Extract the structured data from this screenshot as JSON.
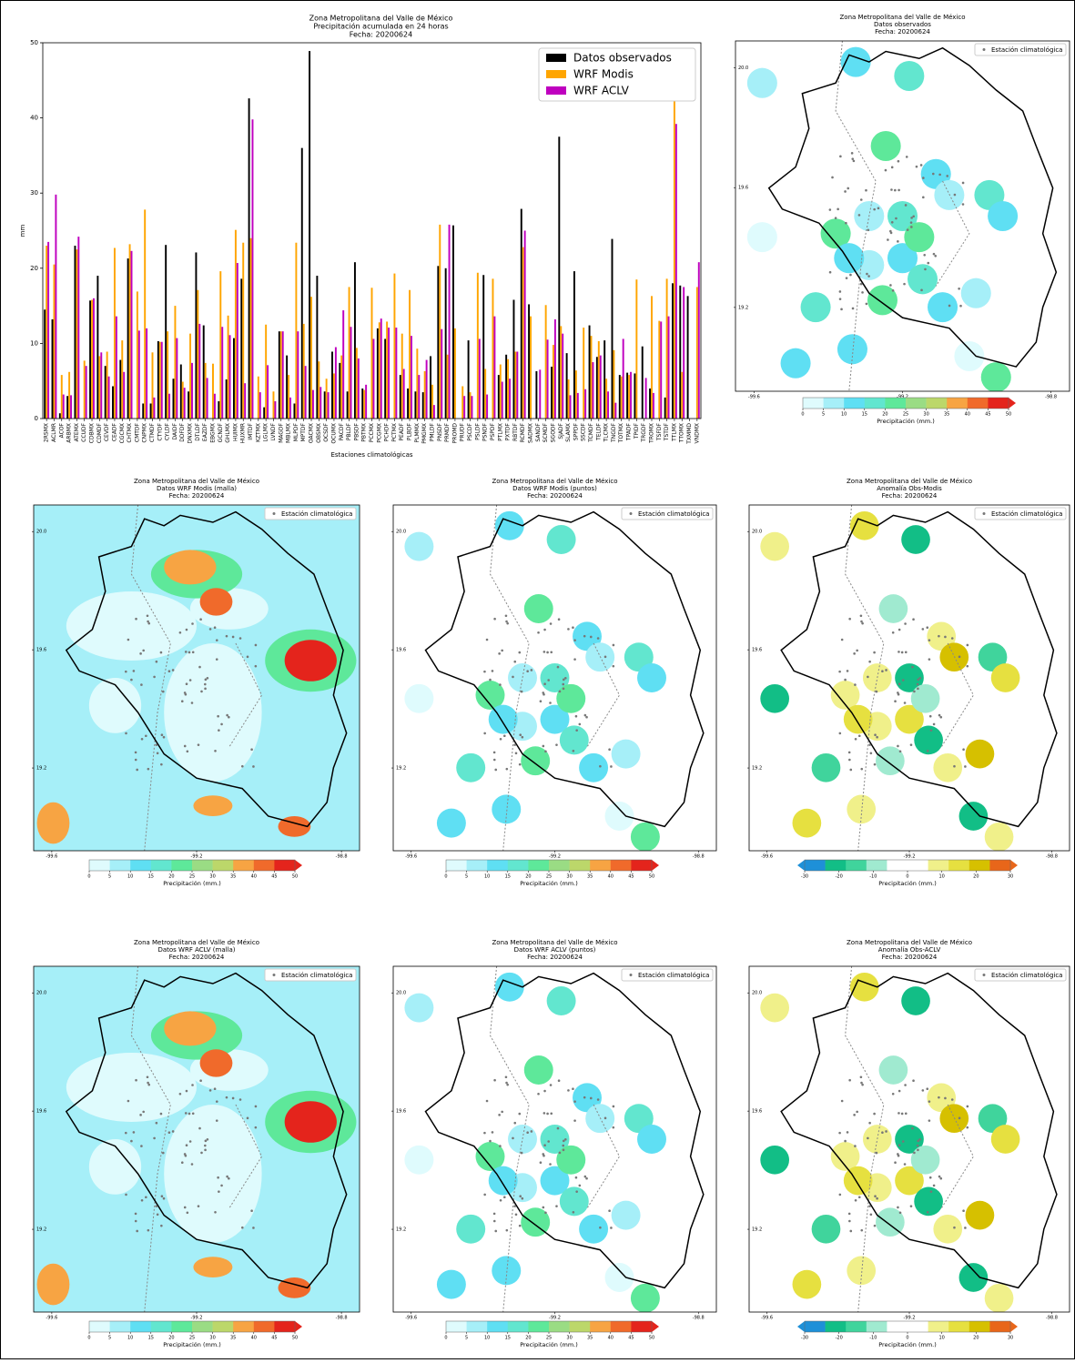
{
  "chart_data": [
    {
      "type": "bar",
      "title": [
        "Zona Metropolitana del Valle de México",
        "Precipitación acumulada en 24 horas",
        "Fecha: 20200624"
      ],
      "x_label": "Estaciones climatológicas",
      "y_label": "mm",
      "categories": [
        "2RSMX",
        "ACLMR",
        "ACOF",
        "ARBMX",
        "ATEMX",
        "CCUDF",
        "CDBMX",
        "CDMDF",
        "CEVDF",
        "CEADF",
        "CGCMX",
        "CHTMX",
        "CMTDF",
        "CNPMX",
        "CTMDF",
        "CTYDF",
        "CYLDF",
        "DAIDF",
        "DDFDF",
        "DNXMX",
        "DTLDF",
        "EAZDF",
        "EBGMX",
        "GCNDF",
        "GHLMX",
        "HUIMX",
        "HUXMR",
        "IMTDF",
        "KZTMX",
        "LGLMX",
        "LVNDF",
        "MAGDF",
        "MBLMX",
        "MLPDF",
        "MPTDF",
        "OACMX",
        "OBSMX",
        "OCSDF",
        "OCUMX",
        "PACDF",
        "PBLDF",
        "PBSDF",
        "PBTMX",
        "PCCMX",
        "PCGMX",
        "PCHDF",
        "PCTMX",
        "PEADF",
        "PLBDF",
        "PLMMX",
        "PMGMX",
        "PMLDF",
        "PNSDF",
        "PRMDF",
        "PROMD",
        "PRUDF",
        "PSCDF",
        "PSLDF",
        "PSNDF",
        "PSPDF",
        "PTLMX",
        "PXTDF",
        "RBTDF",
        "RCMDF",
        "SADMX",
        "SANDF",
        "SCMDF",
        "SGODF",
        "SJADF",
        "SLAMX",
        "SPPDF",
        "SSCDF",
        "TCMDF",
        "TELDF",
        "TLCMX",
        "TNGDF",
        "TOTMX",
        "TPADF",
        "TPIDF",
        "TRGDF",
        "TROMX",
        "TSFDF",
        "TSTDF",
        "TTLMX",
        "TTOMX",
        "TXMMD",
        "VNDMX"
      ],
      "series": [
        {
          "name": "Datos observados",
          "color": "#000000",
          "values": [
            14.5,
            13.2,
            0.7,
            3,
            23,
            0,
            15.7,
            19,
            7,
            4.3,
            7.8,
            21.3,
            0,
            2,
            2,
            10.3,
            23.1,
            5.3,
            7.2,
            3.6,
            22.1,
            12.4,
            0,
            2.3,
            5.2,
            10.7,
            18.6,
            42.6,
            0,
            1.5,
            0,
            11.6,
            8.4,
            2,
            36,
            48.9,
            19,
            3.6,
            8.9,
            7.4,
            3.6,
            20.8,
            4,
            0,
            12,
            10.6,
            0,
            5.8,
            4,
            3.6,
            3.5,
            8.3,
            20.3,
            20,
            25.7,
            0,
            10.4,
            0,
            19.1,
            0,
            5.8,
            8.5,
            15.8,
            27.9,
            15.2,
            6.3,
            0,
            6.9,
            37.5,
            8.7,
            19.6,
            0,
            12.4,
            8.2,
            10.4,
            23.9,
            5.8,
            6.1,
            6,
            9.6,
            4,
            0,
            2.8,
            18,
            17.7,
            16.3,
            0
          ]
        },
        {
          "name": "WRF Modis",
          "color": "#ffa500",
          "values": [
            23,
            20.5,
            5.8,
            6.2,
            22.5,
            7.7,
            15.8,
            8.3,
            8.9,
            22.7,
            10.4,
            23.2,
            16.9,
            27.8,
            8.8,
            10.2,
            11.6,
            15,
            4.9,
            11.3,
            17.1,
            7.4,
            7.3,
            19.6,
            13.7,
            25.1,
            23.4,
            24,
            5.6,
            12.5,
            3.6,
            11.6,
            5.8,
            23.4,
            12.6,
            16.2,
            7.6,
            5.3,
            6,
            8.4,
            17.5,
            9.4,
            3.8,
            17.4,
            12.8,
            12.9,
            19.3,
            11.3,
            17.1,
            9.3,
            6.3,
            4.5,
            25.8,
            8.5,
            12,
            4.3,
            3.5,
            19.4,
            6.6,
            18.6,
            7.2,
            7.9,
            8.9,
            22.8,
            13.6,
            0,
            15.1,
            9.8,
            12.3,
            5.2,
            6.4,
            12.1,
            11,
            10.3,
            5.3,
            9.1,
            5.6,
            5.8,
            18.5,
            0,
            16.3,
            13,
            18.6,
            42.2,
            6.2,
            0,
            17.5
          ]
        },
        {
          "name": "WRF ACLV",
          "color": "#bf00bf",
          "values": [
            23.5,
            29.8,
            3.2,
            3.1,
            24.2,
            7,
            16,
            8.8,
            5.6,
            13.6,
            6.2,
            22.3,
            11.7,
            12,
            2.8,
            10.2,
            3.3,
            10.7,
            4.1,
            7.4,
            12.6,
            5.4,
            3.3,
            12.2,
            11.1,
            20.7,
            4.7,
            39.8,
            3.5,
            7.1,
            2.3,
            11.6,
            2.8,
            11.6,
            7,
            3.8,
            4.2,
            3.5,
            9.5,
            14.4,
            12.2,
            8,
            4.5,
            10.6,
            13.3,
            12.1,
            12.1,
            6.6,
            11,
            5.8,
            7.8,
            1.8,
            11.9,
            25.8,
            0,
            3,
            3,
            10.6,
            3.2,
            13.6,
            4.9,
            5.3,
            8.9,
            25,
            0,
            6.5,
            10.5,
            13.2,
            11.3,
            3.1,
            3.4,
            3.9,
            7.5,
            8.4,
            3.6,
            2.1,
            10.6,
            6.2,
            0,
            5.4,
            3.4,
            12.9,
            13.6,
            39.2,
            17.5,
            0,
            20.8
          ]
        }
      ],
      "ylim": [
        0,
        50
      ],
      "yticks": [
        0,
        10,
        20,
        30,
        40,
        50
      ],
      "legend": "upper right"
    },
    {
      "type": "map",
      "title": [
        "Zona Metropolitana del Valle de México",
        "Datos observados",
        "Fecha: 20200624"
      ],
      "legend": "Estación climatológica",
      "xlim": [
        -99.65,
        -98.75
      ],
      "xticks": [
        -99.6,
        -99.2,
        -98.8
      ],
      "ylim": [
        18.92,
        20.09
      ],
      "yticks": [
        {
          "value": 20,
          "label": "20.0"
        },
        19.6,
        19.2
      ],
      "colorbar": {
        "label": "Precipitación (mm.)",
        "ticks": [
          0,
          5,
          10,
          15,
          20,
          25,
          30,
          35,
          40,
          45,
          50
        ],
        "colors": [
          "#dffbfd",
          "#a6eff8",
          "#5fdff3",
          "#62e6cf",
          "#5ee89a",
          "#9adc84",
          "#bcd76a",
          "#f7a443",
          "#f06a2b",
          "#e4241c"
        ]
      }
    },
    {
      "type": "map",
      "title": [
        "Zona Metropolitana del Valle de México",
        "Datos WRF Modis (malla)",
        "Fecha: 20200624"
      ],
      "legend": "Estación climatológica",
      "xlim": [
        -99.65,
        -98.75
      ],
      "xticks": [
        -99.6,
        -99.2,
        -98.8
      ],
      "ylim": [
        18.92,
        20.09
      ],
      "yticks": [
        {
          "value": 20,
          "label": "20.0"
        },
        19.6,
        19.2
      ],
      "colorbar": {
        "label": "Precipitación (mm.)",
        "ticks": [
          0,
          5,
          10,
          15,
          20,
          25,
          30,
          35,
          40,
          45,
          50
        ],
        "colors": [
          "#dffbfd",
          "#a6eff8",
          "#5fdff3",
          "#62e6cf",
          "#5ee89a",
          "#9adc84",
          "#bcd76a",
          "#f7a443",
          "#f06a2b",
          "#e4241c"
        ]
      }
    },
    {
      "type": "map",
      "title": [
        "Zona Metropolitana del Valle de México",
        "Datos WRF Modis (puntos)",
        "Fecha: 20200624"
      ],
      "legend": "Estación climatológica",
      "xlim": [
        -99.65,
        -98.75
      ],
      "xticks": [
        -99.6,
        -99.2,
        -98.8
      ],
      "ylim": [
        18.92,
        20.09
      ],
      "yticks": [
        {
          "value": 20,
          "label": "20.0"
        },
        19.6,
        19.2
      ],
      "colorbar": {
        "label": "Precipitación (mm.)",
        "ticks": [
          0,
          5,
          10,
          15,
          20,
          25,
          30,
          35,
          40,
          45,
          50
        ],
        "colors": [
          "#dffbfd",
          "#a6eff8",
          "#5fdff3",
          "#62e6cf",
          "#5ee89a",
          "#9adc84",
          "#bcd76a",
          "#f7a443",
          "#f06a2b",
          "#e4241c"
        ]
      }
    },
    {
      "type": "map",
      "title": [
        "Zona Metropolitana del Valle de México",
        "Anomalía Obs-Modis",
        "Fecha: 20200624"
      ],
      "legend": "Estación climatológica",
      "xlim": [
        -99.65,
        -98.75
      ],
      "xticks": [
        -99.6,
        -99.2,
        -98.8
      ],
      "ylim": [
        18.92,
        20.09
      ],
      "yticks": [
        {
          "value": 20,
          "label": "20.0"
        },
        19.6,
        19.2
      ],
      "colorbar": {
        "label": "Precipitación (mm.)",
        "ticks": [
          -30,
          -20,
          -10,
          0,
          10,
          20,
          30
        ],
        "colors": [
          "#1e90d8",
          "#12be86",
          "#40d49c",
          "#a0ead0",
          "#ffffff",
          "#ffffff",
          "#f0f08a",
          "#e6e040",
          "#d6c000",
          "#e8661a"
        ]
      }
    },
    {
      "type": "map",
      "title": [
        "Zona Metropolitana del Valle de México",
        "Datos WRF ACLV (malla)",
        "Fecha: 20200624"
      ],
      "legend": "Estación climatológica",
      "xlim": [
        -99.65,
        -98.75
      ],
      "xticks": [
        -99.6,
        -99.2,
        -98.8
      ],
      "ylim": [
        18.92,
        20.09
      ],
      "yticks": [
        {
          "value": 20,
          "label": "20.0"
        },
        19.6,
        19.2
      ],
      "colorbar": {
        "label": "Precipitación (mm.)",
        "ticks": [
          0,
          5,
          10,
          15,
          20,
          25,
          30,
          35,
          40,
          45,
          50
        ],
        "colors": [
          "#dffbfd",
          "#a6eff8",
          "#5fdff3",
          "#62e6cf",
          "#5ee89a",
          "#9adc84",
          "#bcd76a",
          "#f7a443",
          "#f06a2b",
          "#e4241c"
        ]
      }
    },
    {
      "type": "map",
      "title": [
        "Zona Metropolitana del Valle de México",
        "Datos WRF ACLV (puntos)",
        "Fecha: 20200624"
      ],
      "legend": "Estación climatológica",
      "xlim": [
        -99.65,
        -98.75
      ],
      "xticks": [
        -99.6,
        -99.2,
        -98.8
      ],
      "ylim": [
        18.92,
        20.09
      ],
      "yticks": [
        {
          "value": 20,
          "label": "20.0"
        },
        19.6,
        19.2
      ],
      "colorbar": {
        "label": "Precipitación (mm.)",
        "ticks": [
          0,
          5,
          10,
          15,
          20,
          25,
          30,
          35,
          40,
          45,
          50
        ],
        "colors": [
          "#dffbfd",
          "#a6eff8",
          "#5fdff3",
          "#62e6cf",
          "#5ee89a",
          "#9adc84",
          "#bcd76a",
          "#f7a443",
          "#f06a2b",
          "#e4241c"
        ]
      }
    },
    {
      "type": "map",
      "title": [
        "Zona Metropolitana del Valle de México",
        "Anomalía Obs-ACLV",
        "Fecha: 20200624"
      ],
      "legend": "Estación climatológica",
      "xlim": [
        -99.65,
        -98.75
      ],
      "xticks": [
        -99.6,
        -99.2,
        -98.8
      ],
      "ylim": [
        18.92,
        20.09
      ],
      "yticks": [
        {
          "value": 20,
          "label": "20.0"
        },
        19.6,
        19.2
      ],
      "colorbar": {
        "label": "Precipitación (mm.)",
        "ticks": [
          -30,
          -20,
          -10,
          0,
          10,
          20,
          30
        ],
        "colors": [
          "#1e90d8",
          "#12be86",
          "#40d49c",
          "#a0ead0",
          "#ffffff",
          "#ffffff",
          "#f0f08a",
          "#e6e040",
          "#d6c000",
          "#e8661a"
        ]
      }
    }
  ]
}
